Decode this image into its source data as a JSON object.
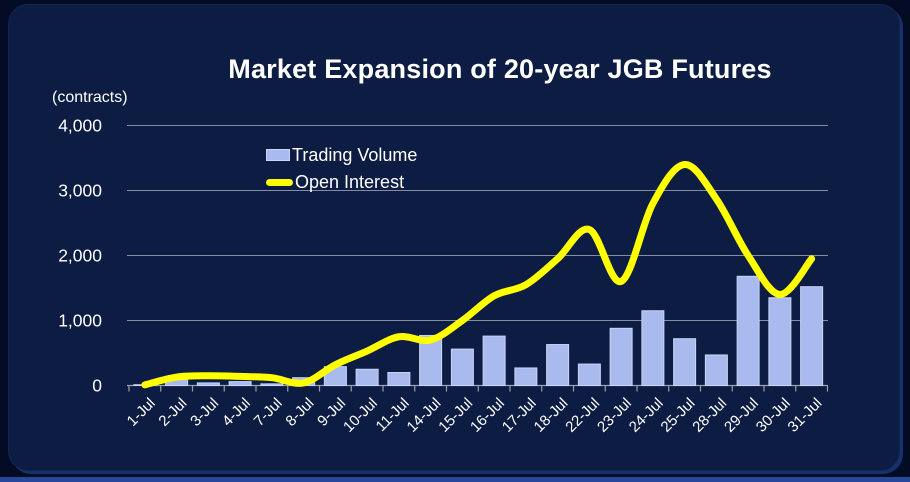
{
  "header": {
    "title": "Market Expansion of 20-year JGB Futures",
    "axis_unit_label": "(contracts)"
  },
  "legend": {
    "items": [
      {
        "label": "Trading Volume",
        "type": "bar",
        "color": "#a9bbee"
      },
      {
        "label": "Open Interest",
        "type": "line",
        "color": "#ffff00"
      }
    ]
  },
  "chart_data": {
    "type": "bar",
    "title": "Market Expansion of 20-year JGB Futures",
    "ylabel": "(contracts)",
    "xlabel": "",
    "grid": true,
    "legend_position": "upper-left-inside",
    "ylim": [
      0,
      4000
    ],
    "yticks": [
      0,
      1000,
      2000,
      3000,
      4000
    ],
    "ytick_labels": [
      "0",
      "1,000",
      "2,000",
      "3,000",
      "4,000"
    ],
    "categories": [
      "1-Jul",
      "2-Jul",
      "3-Jul",
      "4-Jul",
      "7-Jul",
      "8-Jul",
      "9-Jul",
      "10-Jul",
      "11-Jul",
      "14-Jul",
      "15-Jul",
      "16-Jul",
      "17-Jul",
      "18-Jul",
      "22-Jul",
      "23-Jul",
      "24-Jul",
      "25-Jul",
      "28-Jul",
      "29-Jul",
      "30-Jul",
      "31-Jul"
    ],
    "series": [
      {
        "name": "Trading Volume",
        "kind": "bar",
        "values": [
          10,
          90,
          40,
          60,
          25,
          120,
          290,
          250,
          200,
          770,
          560,
          760,
          270,
          630,
          330,
          880,
          1150,
          720,
          470,
          1680,
          1350,
          1520
        ]
      },
      {
        "name": "Open Interest",
        "kind": "line",
        "smooth": true,
        "values": [
          10,
          130,
          150,
          140,
          120,
          40,
          320,
          530,
          750,
          700,
          1000,
          1380,
          1550,
          1950,
          2400,
          1600,
          2800,
          3400,
          2870,
          2000,
          1400,
          1950
        ]
      }
    ],
    "colors": {
      "bar_fill": "#a9bbee",
      "bar_border": "#c9d4f6",
      "line": "#ffff00",
      "grid": "#878da0",
      "axis": "#9aa0ae",
      "text": "#ffffff",
      "card_background": "#0d1c42",
      "page_background": "#030c24",
      "bottom_edge": "#27479b"
    }
  }
}
